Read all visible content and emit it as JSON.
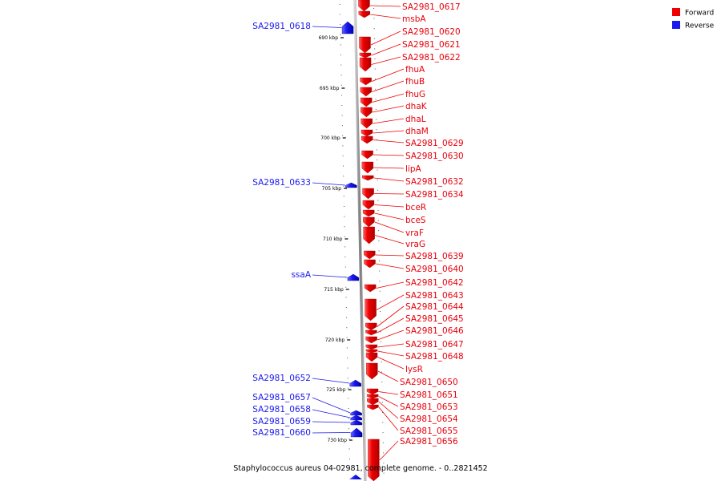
{
  "caption": "Staphylococcus aureus 04-02981, complete genome. - 0..2821452",
  "legend": [
    {
      "label": "Forward",
      "color": "#ee0000"
    },
    {
      "label": "Reverse",
      "color": "#1a1aee"
    }
  ],
  "axis_ticks": [
    "690 kbp",
    "695 kbp",
    "700 kbp",
    "705 kbp",
    "710 kbp",
    "715 kbp",
    "720 kbp",
    "725 kbp",
    "730 kbp"
  ],
  "forward_genes": [
    "SA2981_0617",
    "msbA",
    "SA2981_0620",
    "SA2981_0621",
    "SA2981_0622",
    "fhuA",
    "fhuB",
    "fhuG",
    "dhaK",
    "dhaL",
    "dhaM",
    "SA2981_0629",
    "SA2981_0630",
    "lipA",
    "SA2981_0632",
    "SA2981_0634",
    "bceR",
    "bceS",
    "vraF",
    "vraG",
    "SA2981_0639",
    "SA2981_0640",
    "SA2981_0642",
    "SA2981_0643",
    "SA2981_0644",
    "SA2981_0645",
    "SA2981_0646",
    "SA2981_0647",
    "SA2981_0648",
    "lysR",
    "SA2981_0650",
    "SA2981_0651",
    "SA2981_0653",
    "SA2981_0654",
    "SA2981_0655",
    "SA2981_0656"
  ],
  "reverse_genes": [
    "SA2981_0618",
    "SA2981_0633",
    "ssaA",
    "SA2981_0652",
    "SA2981_0657",
    "SA2981_0658",
    "SA2981_0659",
    "SA2981_0660"
  ],
  "colors": {
    "forward": "#ee0000",
    "reverse": "#1a1aee",
    "backbone": "#888888"
  }
}
